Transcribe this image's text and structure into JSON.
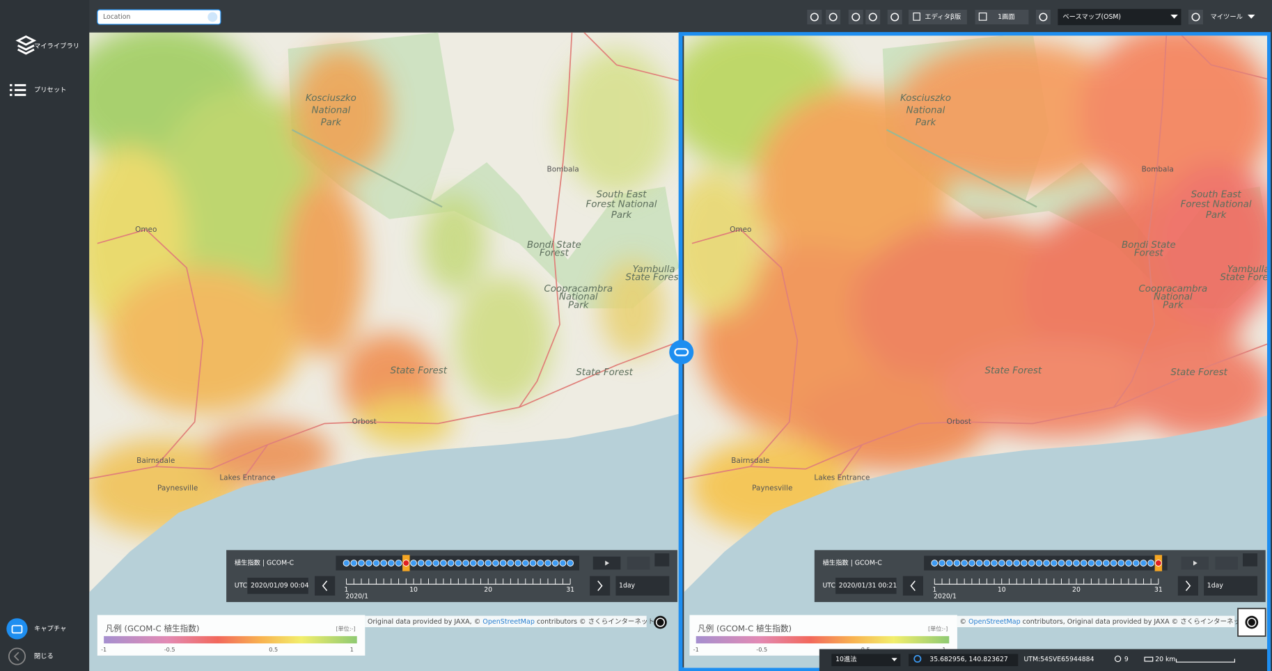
{
  "sidebar": {
    "library": "マイライブラリ",
    "preset": "プリセット",
    "capture": "キャプチャ",
    "close": "閉じる"
  },
  "toolbar": {
    "search_placeholder": "Location",
    "editor": "エディタβ版",
    "screen": "1画面",
    "basemap": "ベースマップ(OSM)",
    "mytool": "マイツール"
  },
  "map_labels": [
    [
      "Kosciuszko",
      "National",
      "Park"
    ],
    [
      "Bombala"
    ],
    [
      "South East",
      "Forest National",
      "Park"
    ],
    [
      "Omeo"
    ],
    [
      "Bondi State",
      "Forest"
    ],
    [
      "Yambulla",
      "State Forest"
    ],
    [
      "Coopracambra",
      "National",
      "Park"
    ],
    [
      "State Forest"
    ],
    [
      "State Forest"
    ],
    [
      "Orbost"
    ],
    [
      "Bairnsdale"
    ],
    [
      "Paynesville"
    ],
    [
      "Lakes Entrance"
    ]
  ],
  "panels": [
    {
      "layer": "植生指数 | GCOM-C",
      "utc": "UTC",
      "date": "2020/01/09 00:04",
      "step": "1day",
      "month": "2020/1",
      "day_ticks": [
        1,
        10,
        20,
        31
      ]
    },
    {
      "layer": "植生指数 | GCOM-C",
      "utc": "UTC",
      "date": "2020/01/31 00:21",
      "step": "1day",
      "month": "2020/1",
      "day_ticks": [
        1,
        10,
        20,
        31
      ]
    }
  ],
  "legend": {
    "title": "凡例 (GCOM-C 植生指数)",
    "unit": "[単位:-]",
    "ticks": [
      -1,
      -0.5,
      0.5,
      1
    ]
  },
  "attribution_left": [
    "Original data provided by JAXA, © ",
    "OpenStreetMap",
    " contributors © さくらインターネット"
  ],
  "attribution_right": [
    "© ",
    "OpenStreetMap",
    " contributors, Original data provided by JAXA © さくらインターネット"
  ],
  "status": {
    "format": "10進法",
    "coords": "35.682956, 140.823627",
    "utm": "UTM:54SVE65944884",
    "zoom": 9,
    "scale": "20 km"
  }
}
